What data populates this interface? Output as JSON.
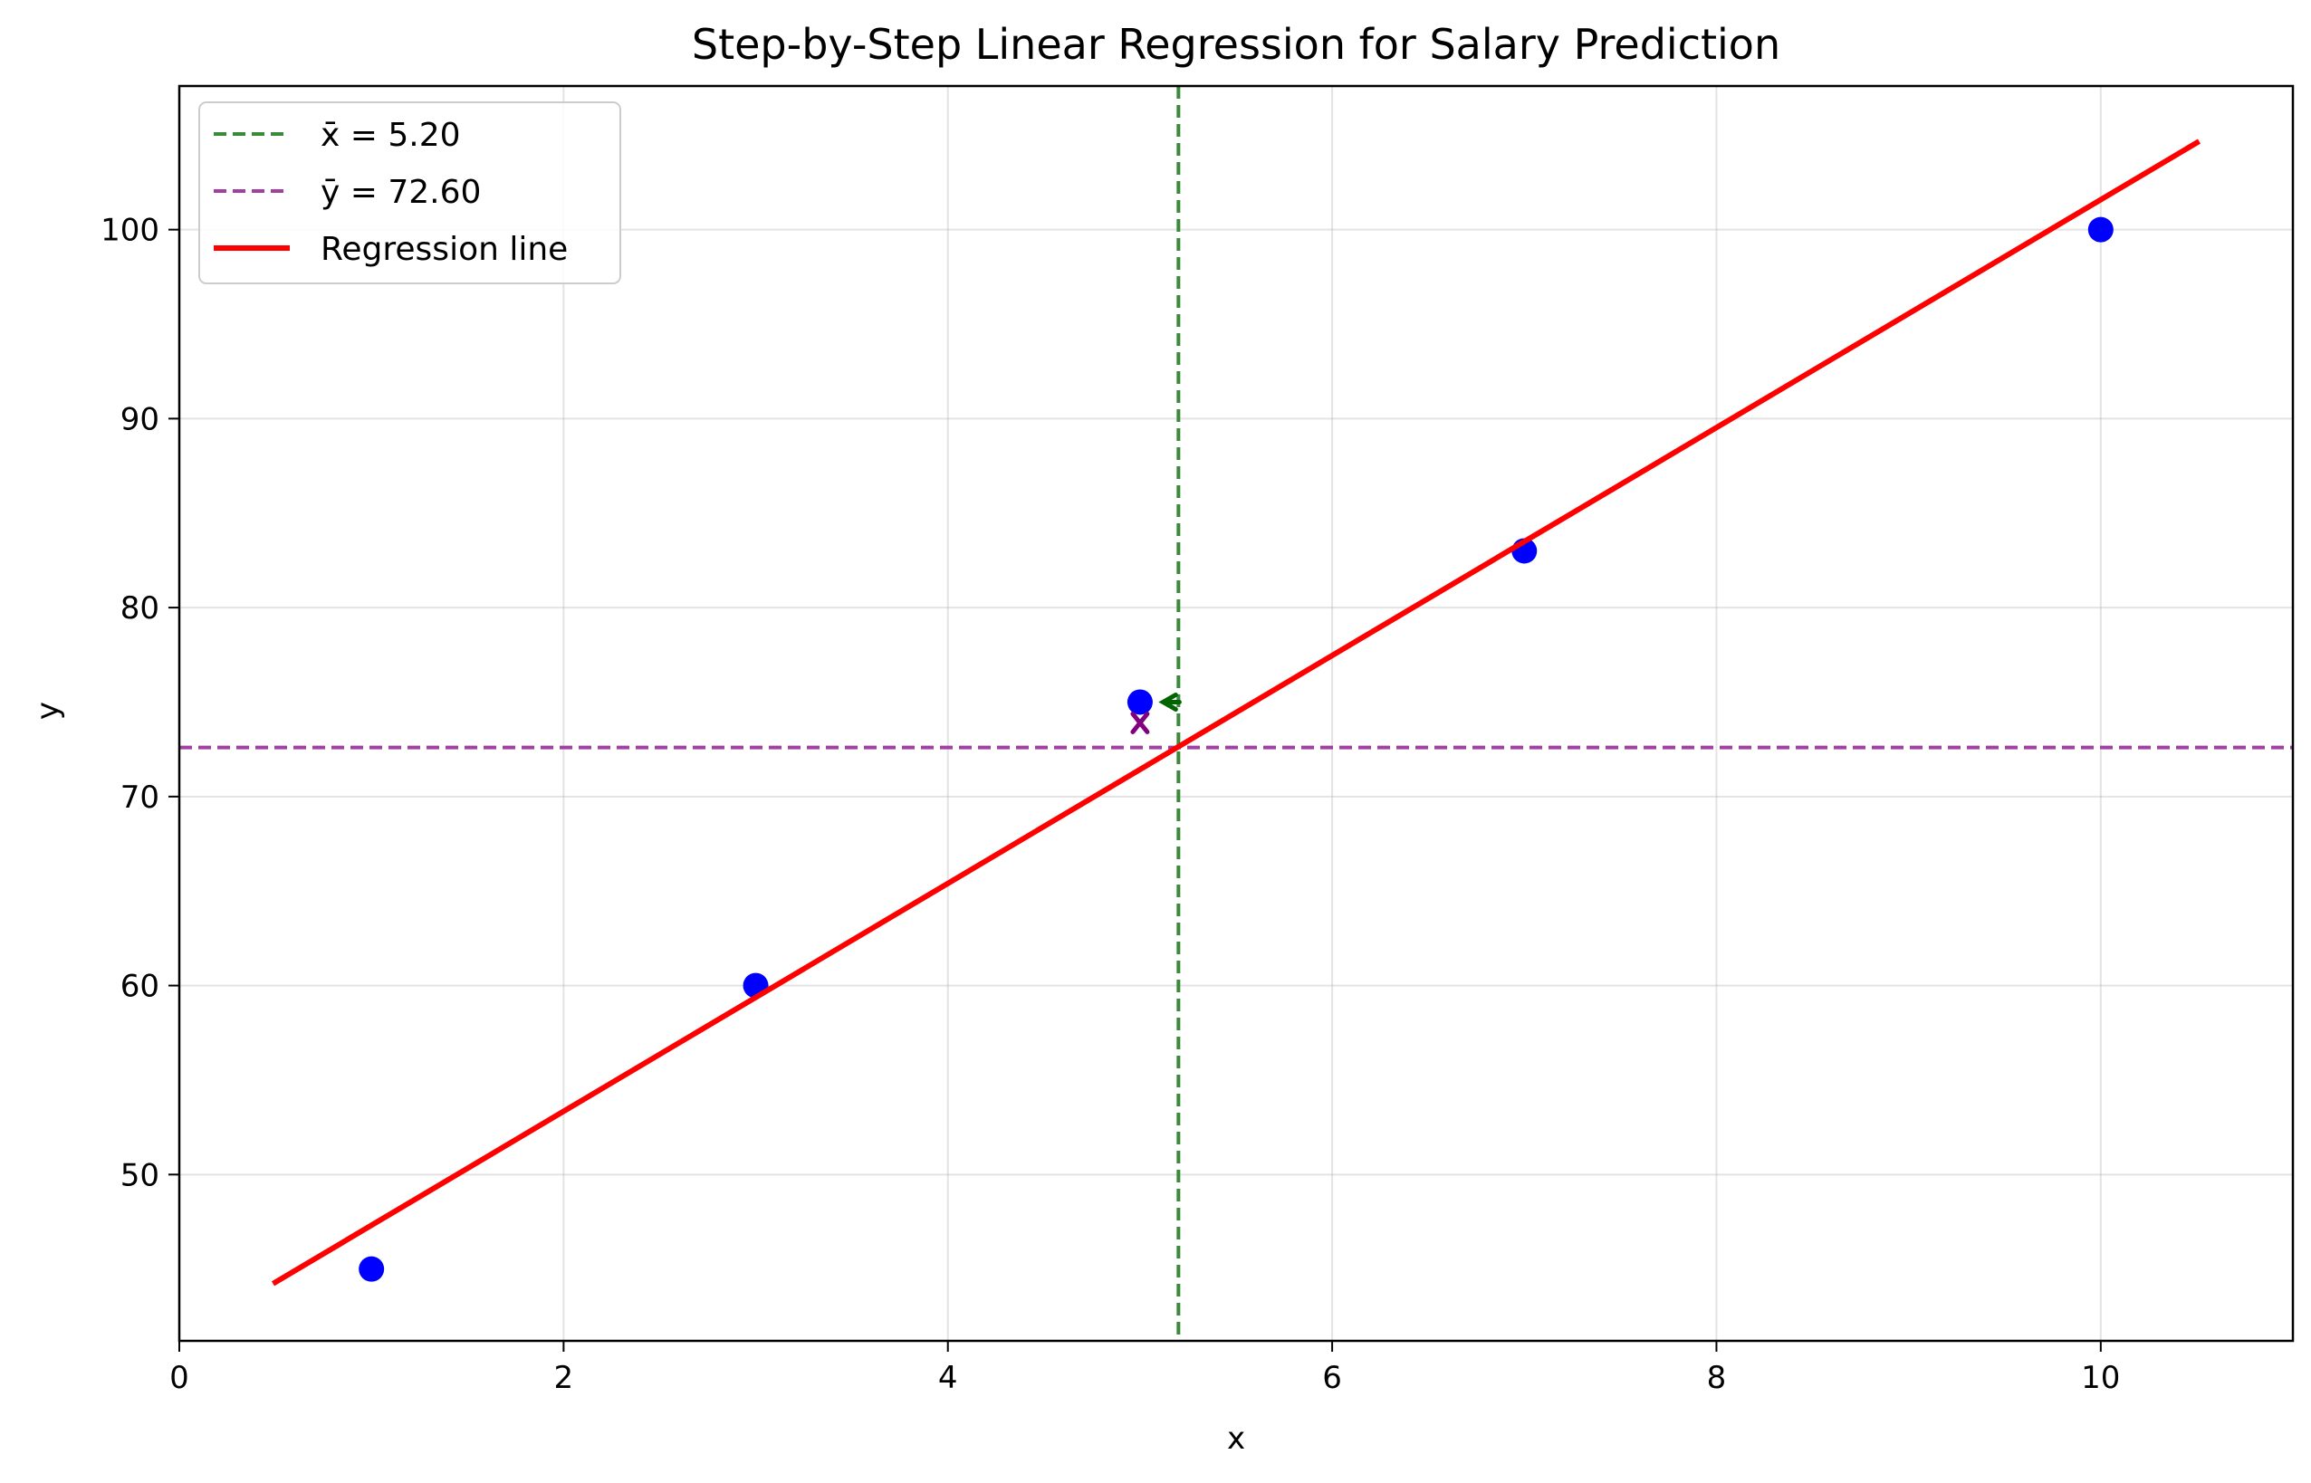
{
  "chart_data": {
    "type": "scatter",
    "title": "Step-by-Step Linear Regression for Salary Prediction",
    "xlabel": "x",
    "ylabel": "y",
    "xlim": [
      0,
      11
    ],
    "ylim": [
      41.2,
      107.6
    ],
    "xticks": [
      0,
      2,
      4,
      6,
      8,
      10
    ],
    "yticks": [
      50,
      60,
      70,
      80,
      90,
      100
    ],
    "grid": true,
    "legend_position": "top-left",
    "points": {
      "color": "#0000ff",
      "x": [
        1,
        3,
        5,
        7,
        10
      ],
      "y": [
        45,
        60,
        75,
        83,
        100
      ]
    },
    "mean_x": {
      "label": "x̄ = 5.20",
      "value": 5.2,
      "color": "#3a8a3a"
    },
    "mean_y": {
      "label": "ȳ = 72.60",
      "value": 72.6,
      "color": "#a040a0"
    },
    "regression": {
      "label": "Regression line",
      "color": "#ff0000",
      "x": [
        0.5,
        10.5
      ],
      "y": [
        44.3,
        104.6
      ]
    },
    "annotations": [
      {
        "shape": "<",
        "x": 5.12,
        "y": 75.0,
        "color": "#006400"
      },
      {
        "shape": "x",
        "x": 5.0,
        "y": 73.9,
        "color": "#800080"
      }
    ]
  }
}
